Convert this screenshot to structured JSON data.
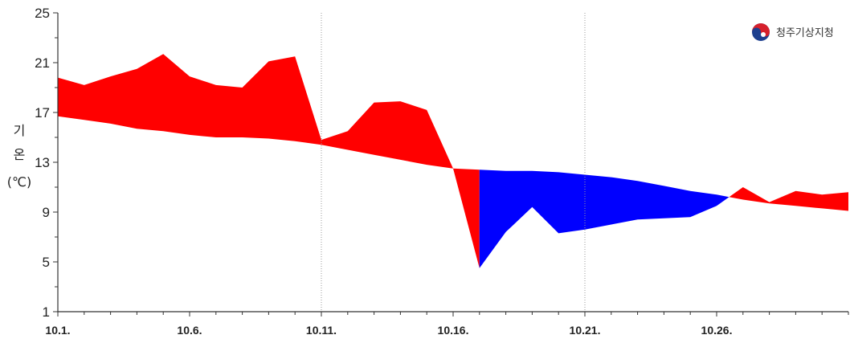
{
  "chart_data": {
    "type": "area",
    "title": "",
    "ylabel_lines": [
      "기",
      "온",
      "(℃)"
    ],
    "xlabel": "",
    "ylim": [
      1,
      25
    ],
    "yticks": [
      1,
      5,
      9,
      13,
      17,
      21,
      25
    ],
    "x": [
      "10.1.",
      "10.2.",
      "10.3.",
      "10.4.",
      "10.5.",
      "10.6.",
      "10.7.",
      "10.8.",
      "10.9.",
      "10.10.",
      "10.11.",
      "10.12.",
      "10.13.",
      "10.14.",
      "10.15.",
      "10.16.",
      "10.17.",
      "10.18.",
      "10.19.",
      "10.20.",
      "10.21.",
      "10.22.",
      "10.23.",
      "10.24.",
      "10.25.",
      "10.26.",
      "10.27.",
      "10.28.",
      "10.29.",
      "10.30.",
      "10.31."
    ],
    "xtick_labels": [
      "10.1.",
      "10.6.",
      "10.11.",
      "10.16.",
      "10.21.",
      "10.26."
    ],
    "xtick_indices": [
      0,
      5,
      10,
      15,
      20,
      25
    ],
    "vertical_gridlines_at": [
      "10.11.",
      "10.21."
    ],
    "series": [
      {
        "values": [
          19.8,
          19.2,
          19.9,
          20.5,
          21.7,
          19.9,
          19.2,
          19.0,
          21.1,
          21.5,
          14.8,
          15.5,
          17.8,
          17.9,
          17.2,
          12.5,
          4.5,
          7.4,
          9.4,
          7.3,
          7.6,
          8.0,
          8.4,
          8.5,
          8.6,
          9.5,
          11.0,
          9.8,
          10.7,
          10.4,
          10.6
        ]
      },
      {
        "values": [
          16.7,
          16.4,
          16.1,
          15.7,
          15.5,
          15.2,
          15.0,
          15.0,
          14.9,
          14.7,
          14.4,
          14.0,
          13.6,
          13.2,
          12.8,
          12.5,
          12.4,
          12.3,
          12.3,
          12.2,
          12.0,
          11.8,
          11.5,
          11.1,
          10.7,
          10.4,
          10.0,
          9.7,
          9.5,
          9.3,
          9.1
        ]
      }
    ],
    "colors": {
      "above": "#ff0000",
      "below": "#0000ff",
      "axis": "#333333",
      "grid": "#9a9a9a"
    },
    "grid": false,
    "logo": {
      "text": "청주기상지청",
      "placement": "top-right"
    }
  }
}
